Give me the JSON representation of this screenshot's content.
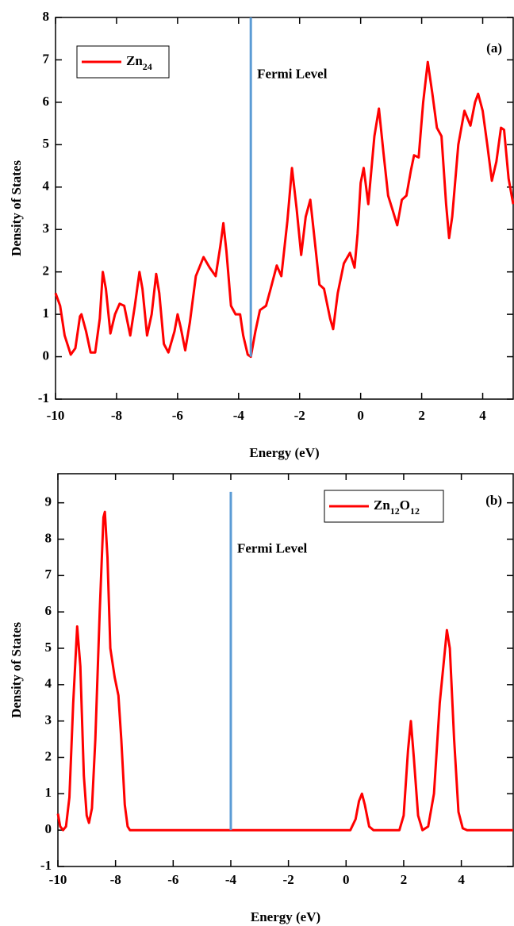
{
  "chart_data": [
    {
      "type": "line",
      "panel_label": "(a)",
      "xlabel": "Energy (eV)",
      "ylabel": "Density of States",
      "xlim": [
        -10,
        5
      ],
      "ylim": [
        -1,
        8
      ],
      "xticks": [
        -10,
        -8,
        -6,
        -4,
        -2,
        0,
        2,
        4
      ],
      "yticks": [
        -1,
        0,
        1,
        2,
        3,
        4,
        5,
        6,
        7,
        8
      ],
      "legend": "upper left",
      "fermi_level": {
        "label": "Fermi Level",
        "x": -3.6,
        "y": [
          0,
          8
        ],
        "color": "#5b9bd5"
      },
      "series": [
        {
          "name": "Zn24",
          "color": "#ff0000",
          "x": [
            -10,
            -9.85,
            -9.7,
            -9.5,
            -9.35,
            -9.2,
            -9.15,
            -9.0,
            -8.85,
            -8.7,
            -8.55,
            -8.45,
            -8.35,
            -8.2,
            -8.05,
            -7.9,
            -7.75,
            -7.55,
            -7.4,
            -7.25,
            -7.15,
            -7.0,
            -6.85,
            -6.7,
            -6.6,
            -6.45,
            -6.3,
            -6.1,
            -6.0,
            -5.9,
            -5.75,
            -5.6,
            -5.4,
            -5.15,
            -4.95,
            -4.75,
            -4.6,
            -4.5,
            -4.4,
            -4.25,
            -4.1,
            -3.95,
            -3.85,
            -3.7,
            -3.6,
            -3.45,
            -3.3,
            -3.1,
            -2.95,
            -2.75,
            -2.6,
            -2.4,
            -2.25,
            -2.1,
            -1.95,
            -1.8,
            -1.65,
            -1.5,
            -1.35,
            -1.2,
            -1.0,
            -0.9,
            -0.75,
            -0.55,
            -0.35,
            -0.2,
            -0.1,
            0.0,
            0.1,
            0.25,
            0.45,
            0.6,
            0.75,
            0.9,
            1.05,
            1.2,
            1.35,
            1.5,
            1.65,
            1.75,
            1.9,
            2.05,
            2.2,
            2.35,
            2.5,
            2.65,
            2.8,
            2.9,
            3.0,
            3.2,
            3.4,
            3.6,
            3.75,
            3.85,
            4.0,
            4.15,
            4.3,
            4.45,
            4.6,
            4.7,
            4.85,
            5.0
          ],
          "values": [
            1.5,
            1.2,
            0.5,
            0.05,
            0.2,
            0.95,
            1.0,
            0.6,
            0.1,
            0.1,
            0.9,
            2.0,
            1.6,
            0.55,
            1.0,
            1.25,
            1.2,
            0.5,
            1.2,
            2.0,
            1.6,
            0.5,
            1.0,
            1.95,
            1.5,
            0.3,
            0.1,
            0.6,
            1.0,
            0.7,
            0.15,
            0.8,
            1.9,
            2.35,
            2.1,
            1.9,
            2.6,
            3.15,
            2.5,
            1.2,
            1.0,
            1.0,
            0.5,
            0.05,
            0.0,
            0.6,
            1.1,
            1.2,
            1.6,
            2.15,
            1.9,
            3.2,
            4.45,
            3.5,
            2.4,
            3.3,
            3.7,
            2.7,
            1.7,
            1.6,
            0.9,
            0.65,
            1.5,
            2.2,
            2.45,
            2.1,
            2.9,
            4.1,
            4.45,
            3.6,
            5.2,
            5.85,
            4.8,
            3.8,
            3.45,
            3.1,
            3.7,
            3.8,
            4.4,
            4.75,
            4.7,
            6.0,
            6.95,
            6.2,
            5.4,
            5.2,
            3.6,
            2.8,
            3.3,
            5.0,
            5.8,
            5.45,
            6.0,
            6.2,
            5.8,
            5.0,
            4.15,
            4.6,
            5.4,
            5.35,
            4.2,
            3.6
          ]
        }
      ]
    },
    {
      "type": "line",
      "panel_label": "(b)",
      "xlabel": "Energy (eV)",
      "ylabel": "Density of States",
      "xlim": [
        -10,
        5.8
      ],
      "ylim": [
        -1,
        9.8
      ],
      "xticks": [
        -10,
        -8,
        -6,
        -4,
        -2,
        0,
        2,
        4
      ],
      "yticks": [
        -1,
        0,
        1,
        2,
        3,
        4,
        5,
        6,
        7,
        8,
        9
      ],
      "legend": "upper right",
      "fermi_level": {
        "label": "Fermi Level",
        "x": -4.0,
        "y": [
          0,
          9.3
        ],
        "color": "#5b9bd5"
      },
      "series": [
        {
          "name": "Zn12O12",
          "color": "#ff0000",
          "x": [
            -10,
            -9.92,
            -9.82,
            -9.72,
            -9.6,
            -9.47,
            -9.33,
            -9.22,
            -9.1,
            -9.0,
            -8.92,
            -8.82,
            -8.7,
            -8.55,
            -8.42,
            -8.37,
            -8.28,
            -8.18,
            -8.03,
            -7.9,
            -7.8,
            -7.68,
            -7.58,
            -7.5,
            0.15,
            0.33,
            0.45,
            0.55,
            0.65,
            0.8,
            0.95,
            1.85,
            2.0,
            2.15,
            2.25,
            2.35,
            2.5,
            2.65,
            2.85,
            3.05,
            3.25,
            3.5,
            3.6,
            3.75,
            3.9,
            4.05,
            4.2,
            5.8
          ],
          "values": [
            0.45,
            0.1,
            0.0,
            0.1,
            0.9,
            3.5,
            5.6,
            4.5,
            1.5,
            0.4,
            0.2,
            0.6,
            2.5,
            6.0,
            8.6,
            8.75,
            7.5,
            5.0,
            4.2,
            3.7,
            2.5,
            0.7,
            0.1,
            0.0,
            0.0,
            0.3,
            0.8,
            1.0,
            0.7,
            0.1,
            0.0,
            0.0,
            0.4,
            2.2,
            3.0,
            2.0,
            0.4,
            0.0,
            0.1,
            1.0,
            3.5,
            5.5,
            5.0,
            2.5,
            0.5,
            0.05,
            0.0,
            0.0
          ]
        }
      ]
    }
  ]
}
